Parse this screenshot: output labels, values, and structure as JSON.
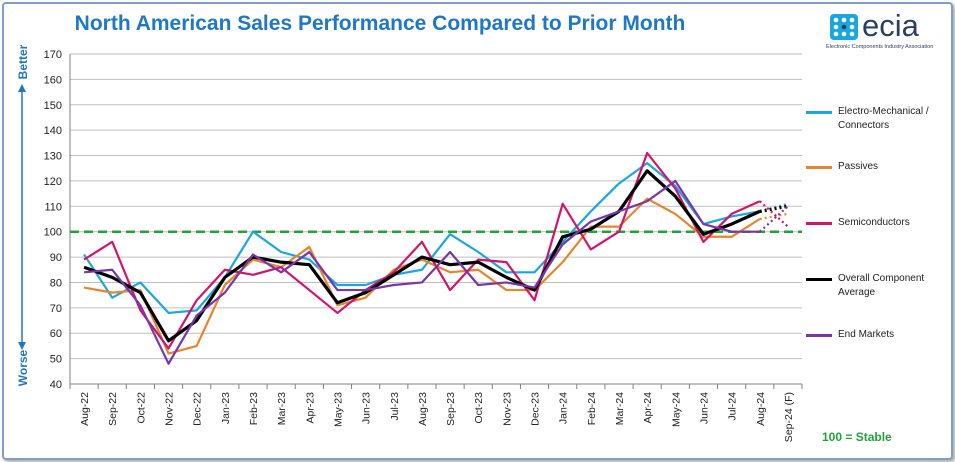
{
  "title": "North American Sales Performance Compared to Prior Month",
  "logo": {
    "word": "ecia",
    "tagline": "Electronic Components Industry Association"
  },
  "axis_side_labels": {
    "top": "Better",
    "bottom": "Worse"
  },
  "stable_note": "100 = Stable",
  "chart_data": {
    "type": "line",
    "categories": [
      "Aug-22",
      "Sep-22",
      "Oct-22",
      "Nov-22",
      "Dec-22",
      "Jan-23",
      "Feb-23",
      "Mar-23",
      "Apr-23",
      "May-23",
      "Jun-23",
      "Jul-23",
      "Aug-23",
      "Sep-23",
      "Oct-23",
      "Nov-23",
      "Dec-23",
      "Jan-24",
      "Feb-24",
      "Mar-24",
      "Apr-24",
      "May-24",
      "Jun-24",
      "Jul-24",
      "Aug-24",
      "Sep-24 (F)"
    ],
    "ylim": [
      40,
      170
    ],
    "ytick_step": 10,
    "grid": true,
    "reference_line": {
      "value": 100,
      "color": "#21a33a",
      "style": "dashed"
    },
    "legend_position": "right",
    "series": [
      {
        "name": "Electro-Mechanical / Connectors",
        "color": "#1aa7df",
        "values": [
          91,
          74,
          80,
          68,
          69,
          82,
          100,
          92,
          89,
          79,
          79,
          83,
          85,
          99,
          92,
          84,
          84,
          96,
          108,
          119,
          127,
          118,
          103,
          106,
          108,
          111
        ]
      },
      {
        "name": "Passives",
        "color": "#e8842b",
        "values": [
          78,
          76,
          77,
          52,
          55,
          79,
          89,
          86,
          94,
          71,
          74,
          85,
          89,
          84,
          85,
          77,
          77,
          88,
          102,
          102,
          113,
          107,
          98,
          98,
          105,
          107
        ]
      },
      {
        "name": "Semiconductors",
        "color": "#d3146c",
        "values": [
          89,
          96,
          69,
          54,
          73,
          85,
          83,
          86,
          77,
          68,
          77,
          84,
          96,
          77,
          89,
          88,
          73,
          111,
          93,
          100,
          131,
          117,
          96,
          107,
          112,
          102
        ]
      },
      {
        "name": "Overall Component Average",
        "color": "#000000",
        "values": [
          86,
          82,
          76,
          57,
          65,
          82,
          90,
          88,
          87,
          72,
          76,
          83,
          90,
          87,
          88,
          82,
          77,
          98,
          101,
          108,
          124,
          114,
          99,
          103,
          108,
          110
        ]
      },
      {
        "name": "End Markets",
        "color": "#7a35a6",
        "values": [
          84,
          85,
          71,
          48,
          67,
          76,
          91,
          84,
          92,
          77,
          77,
          79,
          80,
          92,
          79,
          80,
          78,
          95,
          104,
          108,
          112,
          120,
          103,
          100,
          100,
          110
        ]
      }
    ]
  }
}
